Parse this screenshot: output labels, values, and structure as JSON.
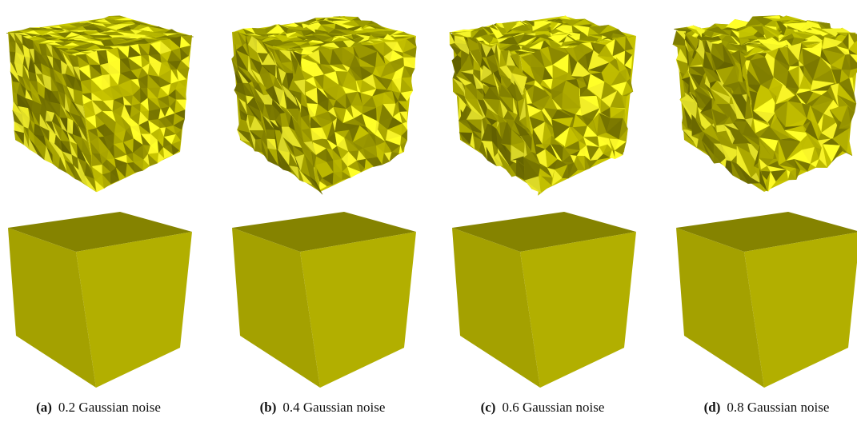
{
  "figure": {
    "panels": [
      {
        "label": "(a)",
        "caption": "0.2 Gaussian noise"
      },
      {
        "label": "(b)",
        "caption": "0.4 Gaussian noise"
      },
      {
        "label": "(c)",
        "caption": "0.6 Gaussian noise"
      },
      {
        "label": "(d)",
        "caption": "0.8 Gaussian noise"
      }
    ]
  }
}
